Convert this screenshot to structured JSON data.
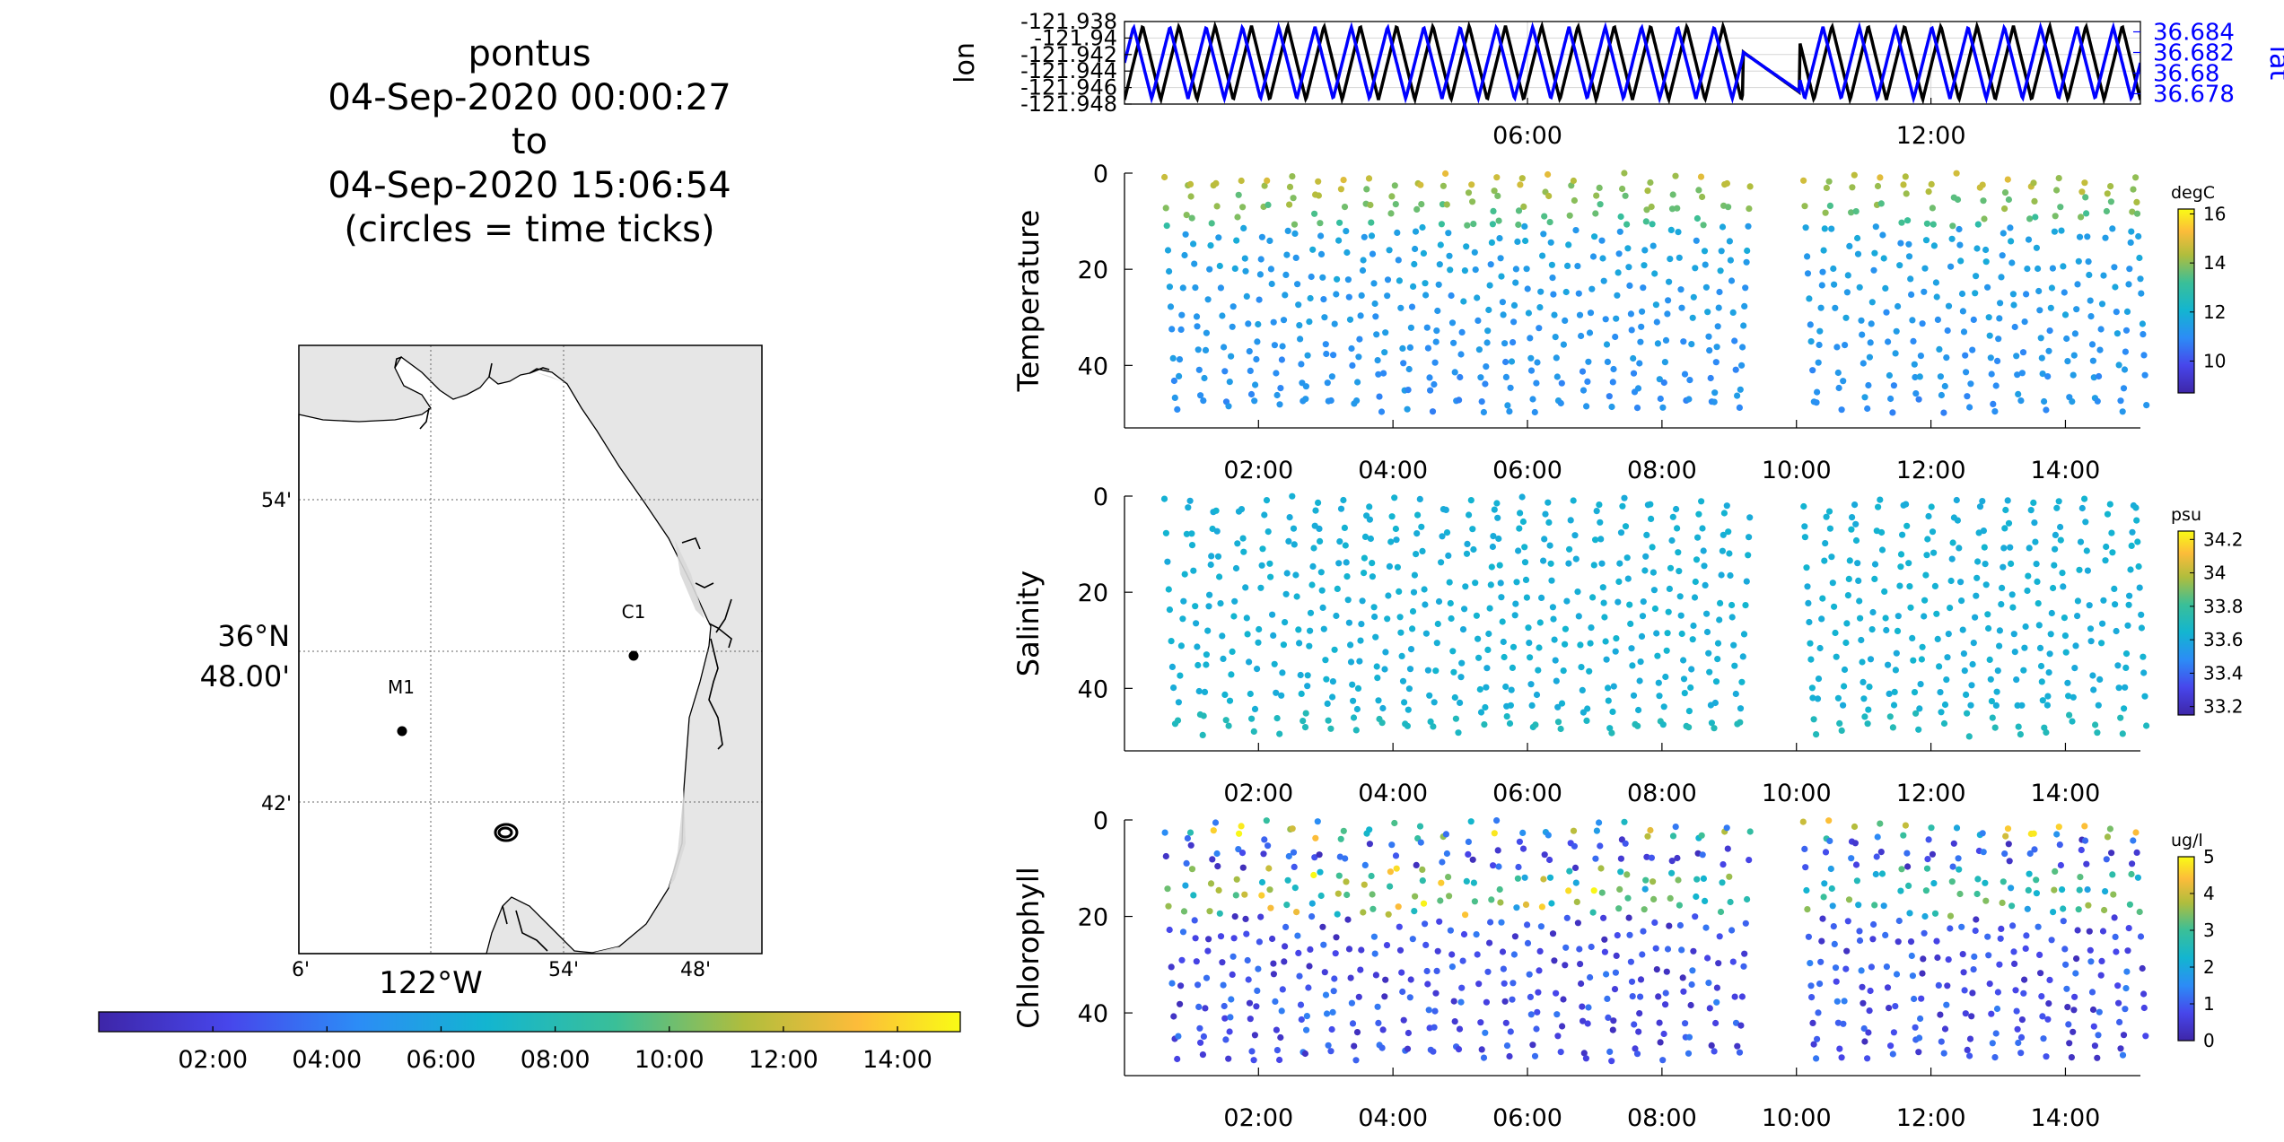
{
  "map_panel": {
    "title_lines": [
      "pontus",
      "04-Sep-2020 00:00:27",
      "to",
      "04-Sep-2020 15:06:54",
      "(circles = time ticks)"
    ],
    "lat_ticks": [
      "54'",
      "42'"
    ],
    "lat_center_label": [
      "36°N",
      "48.00'"
    ],
    "lon_ticks": [
      "6'",
      "54'",
      "48'"
    ],
    "lon_center_label": "122°W",
    "markers": [
      {
        "label": "M1",
        "lat": 36.751,
        "lon": -122.023
      },
      {
        "label": "C1",
        "lat": 36.797,
        "lon": -121.847
      }
    ],
    "glider_cluster": {
      "lat": 36.711,
      "lon": -121.939
    },
    "time_colorbar": {
      "ticks": [
        "02:00",
        "04:00",
        "06:00",
        "08:00",
        "10:00",
        "12:00",
        "14:00"
      ],
      "colormap": "parula"
    }
  },
  "colors": {
    "lon_line": "#000000",
    "lat_line": "#0000ff",
    "land": "#e6e6e6",
    "water": "#ffffff"
  },
  "chart_data": [
    {
      "type": "line",
      "name": "position",
      "xlabel": "",
      "ylabel": "lon",
      "y2label": "lat",
      "x_ticks": [
        "06:00",
        "12:00"
      ],
      "y_ticks": [
        "-121.938",
        "-121.94",
        "-121.942",
        "-121.944",
        "-121.946",
        "-121.948"
      ],
      "y2_ticks": [
        "36.684",
        "36.682",
        "36.68",
        "36.678"
      ],
      "ylim": [
        -121.948,
        -121.938
      ],
      "y2lim": [
        36.677,
        36.685
      ],
      "xlim_hours": [
        0.0075,
        15.115
      ],
      "gap_hours": [
        9.2,
        10.05
      ],
      "grid": true,
      "series": [
        {
          "name": "lon",
          "axis": "left",
          "pattern": "sawtooth",
          "cycles": 28,
          "min": -121.9475,
          "max": -121.9385
        },
        {
          "name": "lat",
          "axis": "right",
          "pattern": "sawtooth",
          "cycles": 28,
          "min": 36.6775,
          "max": 36.6845
        }
      ]
    },
    {
      "type": "scatter",
      "name": "temperature",
      "ylabel": "Temperature",
      "y_ticks": [
        "0",
        "20",
        "40"
      ],
      "ylim": [
        0,
        53
      ],
      "x_ticks": [
        "02:00",
        "04:00",
        "06:00",
        "08:00",
        "10:00",
        "12:00",
        "14:00"
      ],
      "colorbar": {
        "unit": "degC",
        "ticks": [
          "16",
          "14",
          "12",
          "10"
        ],
        "range": [
          8.7,
          16.2
        ]
      },
      "profiles_depth_range": [
        0,
        50
      ],
      "gap_hours": [
        9.2,
        10.05
      ],
      "surface_range": [
        13.5,
        15.5
      ],
      "thermocline_depth": 11,
      "deep_value": 11.2
    },
    {
      "type": "scatter",
      "name": "salinity",
      "ylabel": "Salinity",
      "y_ticks": [
        "0",
        "20",
        "40"
      ],
      "ylim": [
        0,
        53
      ],
      "x_ticks": [
        "02:00",
        "04:00",
        "06:00",
        "08:00",
        "10:00",
        "12:00",
        "14:00"
      ],
      "colorbar": {
        "unit": "psu",
        "ticks": [
          "34.2",
          "34",
          "33.8",
          "33.6",
          "33.4",
          "33.2"
        ],
        "range": [
          33.15,
          34.25
        ]
      },
      "gap_hours": [
        9.2,
        10.05
      ],
      "typical_value": 33.62,
      "deep_value": 33.72
    },
    {
      "type": "scatter",
      "name": "chlorophyll",
      "ylabel": "Chlorophyll",
      "y_ticks": [
        "0",
        "20",
        "40"
      ],
      "ylim": [
        0,
        53
      ],
      "x_ticks": [
        "02:00",
        "04:00",
        "06:00",
        "08:00",
        "10:00",
        "12:00",
        "14:00"
      ],
      "colorbar": {
        "unit": "ug/l",
        "ticks": [
          "5",
          "4",
          "3",
          "2",
          "1",
          "0"
        ],
        "range": [
          0,
          5
        ]
      },
      "gap_hours": [
        9.2,
        10.05
      ],
      "max_layer_depth": [
        10,
        20
      ],
      "max_layer_peak": 5,
      "deep_value": 0.2
    }
  ]
}
